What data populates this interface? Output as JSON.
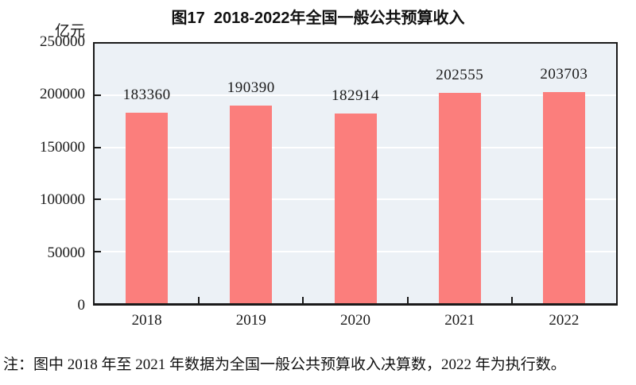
{
  "page": {
    "title": "图17  2018-2022年全国一般公共预算收入",
    "unit_label": "亿元",
    "note": "注：图中 2018 年至 2021 年数据为全国一般公共预算收入决算数，2022 年为执行数。"
  },
  "colors": {
    "bar": "#FB7E7C",
    "plot_background": "#ECF1F6",
    "gridline": "#FFFFFF",
    "axis": "#1A1A1A",
    "page_background": "#FFFFFF",
    "text": "#1A1A1A"
  },
  "chart_data": {
    "type": "bar",
    "title": "图17  2018-2022年全国一般公共预算收入",
    "categories": [
      "2018",
      "2019",
      "2020",
      "2021",
      "2022"
    ],
    "values": [
      183360,
      190390,
      182914,
      202555,
      203703
    ],
    "xlabel": "",
    "ylabel": "亿元",
    "ylim": [
      0,
      250000
    ],
    "yticks": [
      0,
      50000,
      100000,
      150000,
      200000,
      250000
    ],
    "grid": true,
    "legend_position": "none",
    "bar_value_labels_shown": true,
    "note": "注：图中 2018 年至 2021 年数据为全国一般公共预算收入决算数，2022 年为执行数。"
  }
}
